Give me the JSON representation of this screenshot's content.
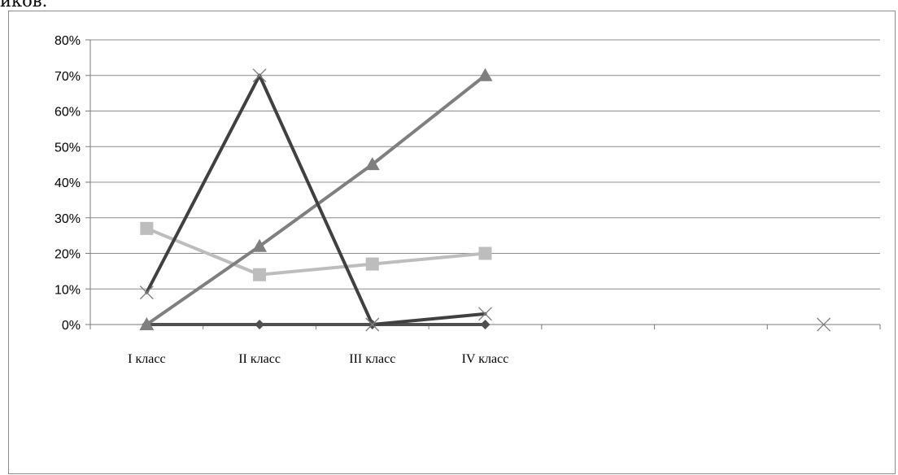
{
  "top_text": "иков.",
  "chart_data": {
    "type": "line",
    "title": "",
    "xlabel": "",
    "ylabel": "",
    "ylim": [
      0,
      0.8
    ],
    "y_ticks": [
      0,
      0.1,
      0.2,
      0.3,
      0.4,
      0.5,
      0.6,
      0.7,
      0.8
    ],
    "y_tick_labels": [
      "0%",
      "10%",
      "20%",
      "30%",
      "40%",
      "50%",
      "60%",
      "70%",
      "80%"
    ],
    "categories": [
      "I класс",
      "II класс",
      "III класс",
      "IV класс",
      "",
      "",
      ""
    ],
    "grid": true,
    "legend": "none",
    "series": [
      {
        "marker": "diamond",
        "color": "#4f4f4f",
        "values": [
          0,
          0,
          0,
          0,
          null,
          null,
          null
        ]
      },
      {
        "marker": "square",
        "color": "#bdbdbd",
        "values": [
          0.27,
          0.14,
          0.17,
          0.2,
          null,
          null,
          null
        ]
      },
      {
        "marker": "triangle",
        "color": "#7f7f7f",
        "values": [
          0,
          0.22,
          0.45,
          0.7,
          null,
          null,
          null
        ]
      },
      {
        "marker": "x",
        "color": "#404040",
        "values": [
          0.09,
          0.7,
          0,
          0.03,
          null,
          null,
          0
        ]
      }
    ]
  }
}
